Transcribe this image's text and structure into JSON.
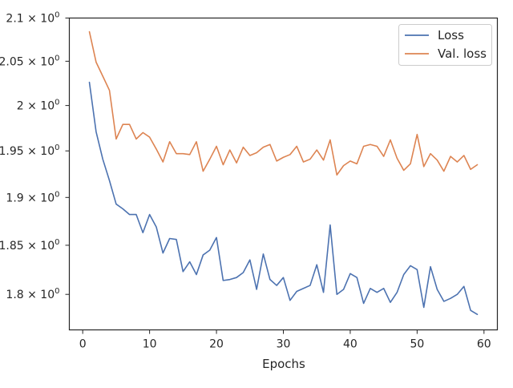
{
  "chart_data": {
    "type": "line",
    "title": "",
    "xlabel": "Epochs",
    "ylabel": "",
    "yscale": "log",
    "xlim": [
      -2,
      62
    ],
    "ylim": [
      1.7647,
      2.1
    ],
    "xticks": [
      0,
      10,
      20,
      30,
      40,
      50,
      60
    ],
    "yticks": [
      {
        "value": 1.8,
        "label": "1.8 × 10",
        "exp": "0"
      },
      {
        "value": 1.85,
        "label": "1.85 × 10",
        "exp": "0"
      },
      {
        "value": 1.9,
        "label": "1.9 × 10",
        "exp": "0"
      },
      {
        "value": 1.95,
        "label": "1.95 × 10",
        "exp": "0"
      },
      {
        "value": 2.0,
        "label": "2 × 10",
        "exp": "0"
      },
      {
        "value": 2.05,
        "label": "2.05 × 10",
        "exp": "0"
      },
      {
        "value": 2.1,
        "label": "2.1 × 10",
        "exp": "0"
      }
    ],
    "grid": false,
    "legend_position": "top-right",
    "x": [
      1,
      2,
      3,
      4,
      5,
      6,
      7,
      8,
      9,
      10,
      11,
      12,
      13,
      14,
      15,
      16,
      17,
      18,
      19,
      20,
      21,
      22,
      23,
      24,
      25,
      26,
      27,
      28,
      29,
      30,
      31,
      32,
      33,
      34,
      35,
      36,
      37,
      38,
      39,
      40,
      41,
      42,
      43,
      44,
      45,
      46,
      47,
      48,
      49,
      50,
      51,
      52,
      53,
      54,
      55,
      56,
      57,
      58,
      59
    ],
    "series": [
      {
        "name": "Loss",
        "color": "#4c72b0",
        "values": [
          2.026,
          1.971,
          1.941,
          1.918,
          1.893,
          1.888,
          1.882,
          1.882,
          1.863,
          1.882,
          1.869,
          1.842,
          1.857,
          1.856,
          1.823,
          1.833,
          1.82,
          1.84,
          1.845,
          1.858,
          1.814,
          1.815,
          1.817,
          1.822,
          1.835,
          1.805,
          1.841,
          1.815,
          1.809,
          1.817,
          1.794,
          1.803,
          1.806,
          1.809,
          1.83,
          1.802,
          1.871,
          1.8,
          1.805,
          1.821,
          1.817,
          1.791,
          1.806,
          1.802,
          1.806,
          1.792,
          1.802,
          1.82,
          1.829,
          1.825,
          1.787,
          1.828,
          1.805,
          1.793,
          1.796,
          1.8,
          1.808,
          1.784,
          1.78
        ]
      },
      {
        "name": "Val. loss",
        "color": "#dd8452",
        "values": [
          2.084,
          2.049,
          2.033,
          2.017,
          1.963,
          1.979,
          1.979,
          1.963,
          1.97,
          1.965,
          1.952,
          1.938,
          1.96,
          1.947,
          1.947,
          1.946,
          1.96,
          1.928,
          1.941,
          1.955,
          1.935,
          1.951,
          1.937,
          1.954,
          1.945,
          1.948,
          1.954,
          1.957,
          1.939,
          1.943,
          1.946,
          1.955,
          1.938,
          1.941,
          1.951,
          1.94,
          1.962,
          1.924,
          1.934,
          1.939,
          1.936,
          1.955,
          1.957,
          1.955,
          1.944,
          1.962,
          1.942,
          1.929,
          1.936,
          1.968,
          1.933,
          1.947,
          1.94,
          1.928,
          1.944,
          1.938,
          1.945,
          1.93,
          1.935
        ]
      }
    ]
  }
}
